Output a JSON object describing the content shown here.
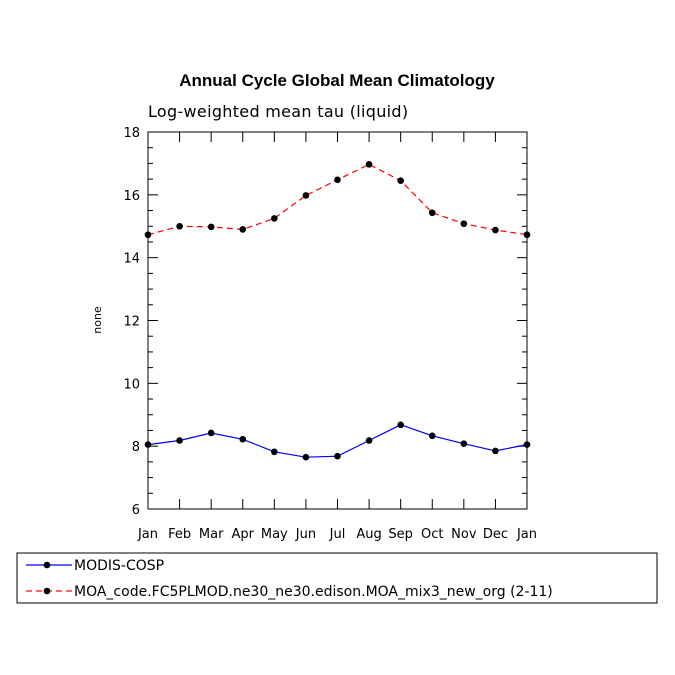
{
  "chart_data": {
    "type": "line",
    "title": "Annual Cycle Global Mean Climatology",
    "subtitle": "Log-weighted mean tau (liquid)",
    "xlabel": "",
    "ylabel": "none",
    "categories": [
      "Jan",
      "Feb",
      "Mar",
      "Apr",
      "May",
      "Jun",
      "Jul",
      "Aug",
      "Sep",
      "Oct",
      "Nov",
      "Dec",
      "Jan"
    ],
    "ylim": [
      6,
      18
    ],
    "yticks": [
      "6",
      "8",
      "10",
      "12",
      "14",
      "16",
      "18"
    ],
    "grid": false,
    "legend_position": "bottom",
    "series": [
      {
        "name": "MODIS-COSP",
        "color": "#0000ff",
        "dash": "solid",
        "values": [
          8.05,
          8.18,
          8.42,
          8.22,
          7.82,
          7.65,
          7.68,
          8.18,
          8.68,
          8.33,
          8.08,
          7.85,
          8.05
        ]
      },
      {
        "name": "MOA_code.FC5PLMOD.ne30_ne30.edison.MOA_mix3_new_org (2-11)",
        "color": "#ff0000",
        "dash": "dashed",
        "values": [
          14.73,
          15.0,
          14.98,
          14.9,
          15.25,
          15.98,
          16.48,
          16.97,
          16.45,
          15.43,
          15.08,
          14.88,
          14.73
        ]
      }
    ]
  }
}
